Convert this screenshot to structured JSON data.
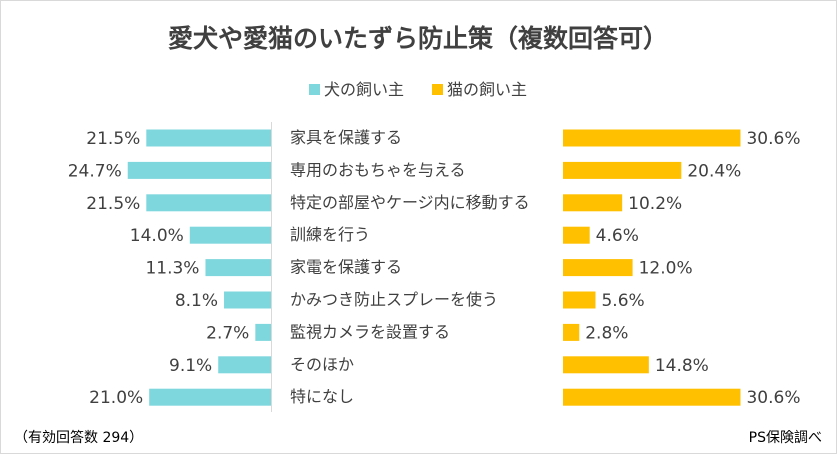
{
  "chart_data": {
    "type": "bar",
    "orientation": "horizontal-butterfly",
    "title": "愛犬や愛猫のいたずら防止策（複数回答可）",
    "categories": [
      "家具を保護する",
      "専用のおもちゃを与える",
      "特定の部屋やケージ内に移動する",
      "訓練を行う",
      "家電を保護する",
      "かみつき防止スプレーを使う",
      "監視カメラを設置する",
      "そのほか",
      "特になし"
    ],
    "series": [
      {
        "name": "犬の飼い主",
        "color": "#7FD7DE",
        "values": [
          21.5,
          24.7,
          21.5,
          14.0,
          11.3,
          8.1,
          2.7,
          9.1,
          21.0
        ]
      },
      {
        "name": "猫の飼い主",
        "color": "#FFC000",
        "values": [
          30.6,
          20.4,
          10.2,
          4.6,
          12.0,
          5.6,
          2.8,
          14.8,
          30.6
        ]
      }
    ],
    "value_suffix": "%",
    "legend_position": "top",
    "grid": false,
    "footnote_left": "（有効回答数 294）",
    "footnote_right": "PS保険調べ"
  }
}
